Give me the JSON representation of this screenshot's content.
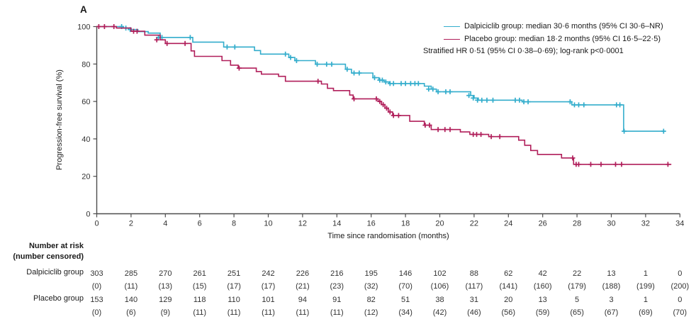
{
  "panel_label": "A",
  "legend": {
    "entries": [
      {
        "label": "Dalpiciclib group: median 30·6 months (95% CI 30·6–NR)",
        "color": "#33ADCC"
      },
      {
        "label": "Placebo group: median 18·2 months (95% CI 16·5–22·5)",
        "color": "#B01E5A"
      }
    ],
    "note": "Stratified HR 0·51 (95% CI 0·38–0·69); log-rank p<0·0001"
  },
  "axes": {
    "x_label": "Time since randomisation (months)",
    "y_label": "Progression-free survival (%)",
    "x_ticks": [
      0,
      2,
      4,
      6,
      8,
      10,
      12,
      14,
      16,
      18,
      20,
      22,
      24,
      26,
      28,
      30,
      32,
      34
    ],
    "y_ticks": [
      0,
      20,
      40,
      60,
      80,
      100
    ],
    "axis_color": "#4d4d4d"
  },
  "chart_data": {
    "type": "line",
    "subtype": "kaplan-meier-step",
    "title": "",
    "xlabel": "Time since randomisation (months)",
    "ylabel": "Progression-free survival (%)",
    "xlim": [
      0,
      34
    ],
    "ylim": [
      0,
      100
    ],
    "legend_position": "top-right",
    "series": [
      {
        "name": "Dalpiciclib group",
        "color": "#33ADCC",
        "median_months": "30·6",
        "ci_95": "30·6–NR",
        "steps": [
          [
            0,
            100
          ],
          [
            1.55,
            99.2
          ],
          [
            1.85,
            98.4
          ],
          [
            2.4,
            97.3
          ],
          [
            3.0,
            96.5
          ],
          [
            3.7,
            94.2
          ],
          [
            5.6,
            91.7
          ],
          [
            7.4,
            89.1
          ],
          [
            9.2,
            87.2
          ],
          [
            9.55,
            85.3
          ],
          [
            11.2,
            83.5
          ],
          [
            11.55,
            81.8
          ],
          [
            12.75,
            79.9
          ],
          [
            14.5,
            77.2
          ],
          [
            14.85,
            75.2
          ],
          [
            16.1,
            72.7
          ],
          [
            16.45,
            71.4
          ],
          [
            16.75,
            70.4
          ],
          [
            17.05,
            69.6
          ],
          [
            19.1,
            68.2
          ],
          [
            19.5,
            66.6
          ],
          [
            19.8,
            65.2
          ],
          [
            21.8,
            63.2
          ],
          [
            22.0,
            61.8
          ],
          [
            22.25,
            60.7
          ],
          [
            24.8,
            59.8
          ],
          [
            27.7,
            58.2
          ],
          [
            30.72,
            44.1
          ]
        ],
        "end": 33.1,
        "censors": [
          [
            1.45,
            100
          ],
          [
            1.7,
            99.2
          ],
          [
            1.95,
            98.4
          ],
          [
            3.6,
            94.2
          ],
          [
            3.8,
            94.2
          ],
          [
            5.45,
            94.2
          ],
          [
            7.6,
            89.1
          ],
          [
            8.05,
            89.1
          ],
          [
            11.0,
            85.3
          ],
          [
            11.3,
            83.5
          ],
          [
            11.65,
            81.8
          ],
          [
            12.85,
            79.9
          ],
          [
            13.4,
            79.9
          ],
          [
            13.7,
            79.9
          ],
          [
            14.6,
            77.2
          ],
          [
            15.0,
            75.2
          ],
          [
            15.3,
            75.2
          ],
          [
            16.2,
            72.7
          ],
          [
            16.5,
            71.4
          ],
          [
            16.65,
            71.4
          ],
          [
            16.85,
            70.4
          ],
          [
            17.1,
            69.6
          ],
          [
            17.3,
            69.6
          ],
          [
            17.75,
            69.6
          ],
          [
            18.0,
            69.6
          ],
          [
            18.3,
            69.6
          ],
          [
            18.55,
            69.6
          ],
          [
            18.75,
            69.6
          ],
          [
            19.35,
            66.6
          ],
          [
            19.6,
            66.6
          ],
          [
            19.9,
            65.2
          ],
          [
            20.35,
            65.2
          ],
          [
            20.6,
            65.2
          ],
          [
            21.7,
            63.2
          ],
          [
            21.95,
            61.8
          ],
          [
            22.2,
            60.7
          ],
          [
            22.45,
            60.7
          ],
          [
            22.75,
            60.7
          ],
          [
            23.1,
            60.7
          ],
          [
            24.4,
            60.7
          ],
          [
            24.65,
            60.7
          ],
          [
            24.9,
            59.8
          ],
          [
            25.15,
            59.8
          ],
          [
            27.6,
            59.8
          ],
          [
            27.85,
            58.2
          ],
          [
            28.1,
            58.2
          ],
          [
            28.4,
            58.2
          ],
          [
            30.3,
            58.2
          ],
          [
            30.5,
            58.2
          ],
          [
            30.75,
            44.1
          ],
          [
            33.05,
            44.1
          ]
        ]
      },
      {
        "name": "Placebo group",
        "color": "#B01E5A",
        "median_months": "18·2",
        "ci_95": "16·5–22·5",
        "steps": [
          [
            0,
            100
          ],
          [
            1.15,
            99.2
          ],
          [
            2.0,
            97.5
          ],
          [
            2.8,
            95.4
          ],
          [
            3.7,
            92.9
          ],
          [
            4.0,
            91.0
          ],
          [
            5.5,
            87.0
          ],
          [
            5.7,
            84.1
          ],
          [
            7.3,
            81.8
          ],
          [
            7.8,
            79.4
          ],
          [
            8.25,
            77.8
          ],
          [
            9.3,
            76.0
          ],
          [
            9.6,
            74.6
          ],
          [
            10.6,
            73.4
          ],
          [
            11.0,
            70.8
          ],
          [
            13.1,
            69.3
          ],
          [
            13.45,
            67.0
          ],
          [
            13.8,
            65.8
          ],
          [
            14.75,
            63.4
          ],
          [
            14.95,
            61.4
          ],
          [
            16.4,
            60.0
          ],
          [
            16.6,
            58.3
          ],
          [
            16.8,
            56.4
          ],
          [
            17.0,
            54.4
          ],
          [
            17.25,
            52.5
          ],
          [
            18.25,
            49.4
          ],
          [
            19.1,
            47.3
          ],
          [
            19.5,
            45.0
          ],
          [
            21.2,
            43.7
          ],
          [
            21.75,
            42.4
          ],
          [
            22.85,
            41.2
          ],
          [
            24.6,
            39.3
          ],
          [
            24.95,
            36.6
          ],
          [
            25.3,
            33.8
          ],
          [
            25.7,
            31.7
          ],
          [
            27.1,
            29.8
          ],
          [
            27.8,
            26.4
          ]
        ],
        "end": 33.5,
        "censors": [
          [
            0.12,
            100
          ],
          [
            0.45,
            100
          ],
          [
            1.0,
            100
          ],
          [
            2.15,
            97.5
          ],
          [
            2.35,
            97.5
          ],
          [
            3.5,
            92.9
          ],
          [
            4.1,
            91.0
          ],
          [
            5.15,
            91.0
          ],
          [
            8.3,
            77.8
          ],
          [
            12.9,
            70.8
          ],
          [
            15.0,
            61.4
          ],
          [
            16.3,
            61.4
          ],
          [
            16.5,
            60.0
          ],
          [
            16.7,
            58.3
          ],
          [
            16.9,
            56.4
          ],
          [
            17.1,
            54.4
          ],
          [
            17.3,
            52.5
          ],
          [
            17.6,
            52.5
          ],
          [
            19.15,
            47.3
          ],
          [
            19.4,
            47.3
          ],
          [
            19.9,
            45.0
          ],
          [
            20.3,
            45.0
          ],
          [
            20.6,
            45.0
          ],
          [
            21.95,
            42.4
          ],
          [
            22.15,
            42.4
          ],
          [
            22.4,
            42.4
          ],
          [
            23.0,
            41.2
          ],
          [
            23.5,
            41.2
          ],
          [
            27.75,
            29.8
          ],
          [
            27.95,
            26.4
          ],
          [
            28.1,
            26.4
          ],
          [
            28.8,
            26.4
          ],
          [
            29.4,
            26.4
          ],
          [
            30.25,
            26.4
          ],
          [
            30.6,
            26.4
          ],
          [
            33.3,
            26.4
          ]
        ]
      }
    ]
  },
  "risk_table": {
    "title": "Number at risk",
    "subtitle": "(number censored)",
    "rows": [
      {
        "label": "Dalpiciclib group",
        "counts": [
          303,
          285,
          270,
          261,
          251,
          242,
          226,
          216,
          195,
          146,
          102,
          88,
          62,
          42,
          22,
          13,
          1,
          0
        ],
        "censored": [
          0,
          11,
          13,
          15,
          17,
          17,
          21,
          23,
          32,
          70,
          106,
          117,
          141,
          160,
          179,
          188,
          199,
          200
        ]
      },
      {
        "label": "Placebo group",
        "counts": [
          153,
          140,
          129,
          118,
          110,
          101,
          94,
          91,
          82,
          51,
          38,
          31,
          20,
          13,
          5,
          3,
          1,
          0
        ],
        "censored": [
          0,
          6,
          9,
          11,
          11,
          11,
          11,
          11,
          12,
          34,
          42,
          46,
          56,
          59,
          65,
          67,
          69,
          70
        ]
      }
    ]
  }
}
